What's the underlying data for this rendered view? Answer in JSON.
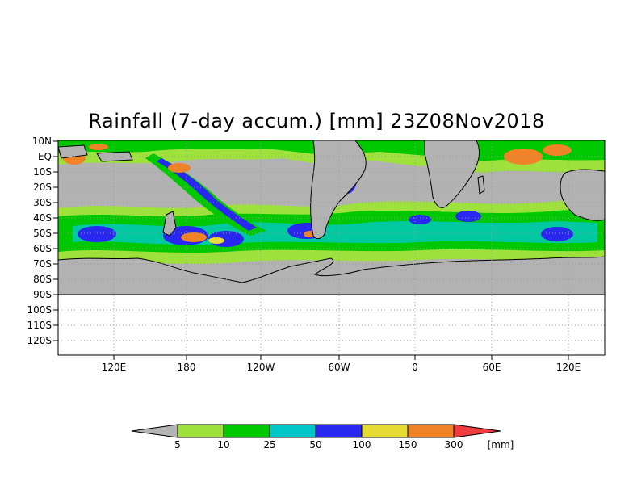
{
  "title": "Rainfall (7-day accum.) [mm] 23Z08Nov2018",
  "map": {
    "lon_labels": [
      "120E",
      "180",
      "120W",
      "60W",
      "0",
      "60E",
      "120E"
    ],
    "lat_labels": [
      "10N",
      "EQ",
      "10S",
      "20S",
      "30S",
      "40S",
      "50S",
      "60S",
      "70S",
      "80S",
      "90S",
      "100S",
      "110S",
      "120S"
    ],
    "colors": {
      "no_data_gray": "#b2b2b2",
      "grid": "#9a9a9a",
      "coast": "#000000"
    }
  },
  "colorbar": {
    "levels": [
      "5",
      "10",
      "25",
      "50",
      "100",
      "150",
      "300"
    ],
    "unit": "[mm]",
    "colors": [
      "#b4b4b4",
      "#9ee13c",
      "#00c800",
      "#00c8c8",
      "#2828f0",
      "#e6dc32",
      "#f08228",
      "#f03c3c"
    ]
  }
}
